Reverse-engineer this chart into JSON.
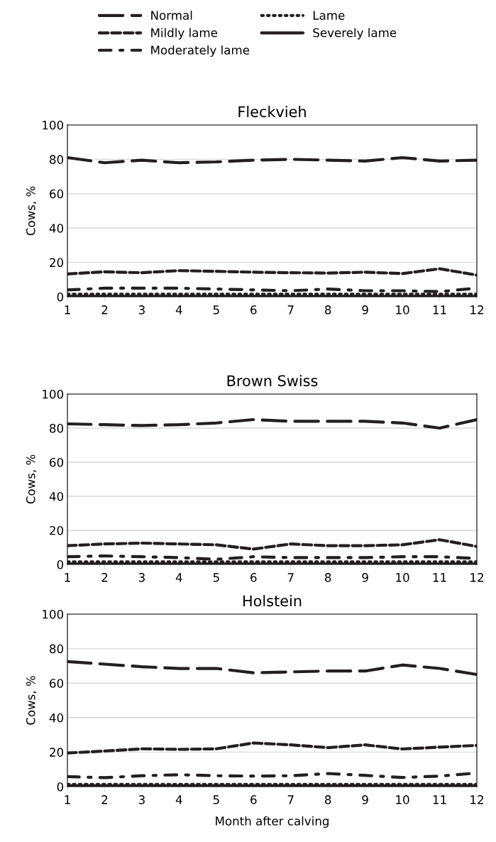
{
  "chart_data": [
    {
      "type": "line",
      "title": "Fleckvieh",
      "ylabel": "Cows, %",
      "x": [
        1,
        2,
        3,
        4,
        5,
        6,
        7,
        8,
        9,
        10,
        11,
        12
      ],
      "xlim": [
        1,
        12
      ],
      "xticks": [
        1,
        2,
        3,
        4,
        5,
        6,
        7,
        8,
        9,
        10,
        11,
        12
      ],
      "ylim": [
        0,
        100
      ],
      "yticks": [
        0,
        20,
        40,
        60,
        80,
        100
      ],
      "grid": "y",
      "legend": "top",
      "series": [
        {
          "name": "Normal",
          "color": "#231f20",
          "line_style": "long dash",
          "values": [
            81,
            78,
            79.5,
            78,
            78.5,
            79.5,
            80,
            79.5,
            79,
            81,
            79,
            79.5
          ]
        },
        {
          "name": "Mildly lame",
          "color": "#231f20",
          "line_style": "dashed",
          "values": [
            13.3,
            14.5,
            14,
            15.2,
            14.8,
            14.3,
            14,
            13.8,
            14.3,
            13.5,
            16.3,
            12.6
          ]
        },
        {
          "name": "Moderately lame",
          "color": "#231f20",
          "line_style": "dash dot",
          "values": [
            4,
            5,
            5,
            5,
            4.5,
            4,
            3.5,
            4.5,
            3.5,
            3.5,
            3,
            5
          ]
        },
        {
          "name": "Lame",
          "color": "#231f20",
          "line_style": "dotted",
          "values": [
            1.5,
            1.5,
            1.5,
            1.5,
            1.5,
            1.5,
            1.5,
            1.5,
            1.5,
            1.5,
            1.5,
            1.5
          ]
        },
        {
          "name": "Severely lame",
          "color": "#231f20",
          "line_style": "solid",
          "values": [
            0.3,
            0.3,
            0.3,
            0.3,
            0.3,
            0.3,
            0.3,
            0.3,
            0.3,
            0.3,
            0.3,
            0.3
          ]
        }
      ]
    },
    {
      "type": "line",
      "title": "Brown Swiss",
      "ylabel": "Cows, %",
      "x": [
        1,
        2,
        3,
        4,
        5,
        6,
        7,
        8,
        9,
        10,
        11,
        12
      ],
      "xlim": [
        1,
        12
      ],
      "xticks": [
        1,
        2,
        3,
        4,
        5,
        6,
        7,
        8,
        9,
        10,
        11,
        12
      ],
      "ylim": [
        0,
        100
      ],
      "yticks": [
        0,
        20,
        40,
        60,
        80,
        100
      ],
      "grid": "y",
      "series": [
        {
          "color": "#231f20",
          "line_style": "long dash",
          "values": [
            82.5,
            82,
            81.5,
            82,
            83,
            85,
            84,
            84,
            84,
            83,
            80,
            85
          ]
        },
        {
          "color": "#231f20",
          "line_style": "dashed",
          "values": [
            11,
            12,
            12.5,
            12,
            11.5,
            9,
            12,
            11,
            11,
            11.5,
            14.5,
            10.5
          ]
        },
        {
          "color": "#231f20",
          "line_style": "dash dot",
          "values": [
            4.5,
            5,
            4.5,
            4,
            3,
            4.5,
            4,
            4,
            4,
            4.5,
            4.5,
            3.5
          ]
        },
        {
          "color": "#231f20",
          "line_style": "dotted",
          "values": [
            1.5,
            1.5,
            1.5,
            1.5,
            1.5,
            1.5,
            1.5,
            1.5,
            1.5,
            1.5,
            1.5,
            1.5
          ]
        },
        {
          "color": "#231f20",
          "line_style": "solid",
          "values": [
            0.3,
            0.3,
            0.3,
            0.3,
            0.3,
            0.3,
            0.3,
            0.3,
            0.3,
            0.3,
            0.3,
            0.3
          ]
        }
      ]
    },
    {
      "type": "line",
      "title": "Holstein",
      "ylabel": "Cows, %",
      "xlabel": "Month after calving",
      "x": [
        1,
        2,
        3,
        4,
        5,
        6,
        7,
        8,
        9,
        10,
        11,
        12
      ],
      "xlim": [
        1,
        12
      ],
      "xticks": [
        1,
        2,
        3,
        4,
        5,
        6,
        7,
        8,
        9,
        10,
        11,
        12
      ],
      "ylim": [
        0,
        100
      ],
      "yticks": [
        0,
        20,
        40,
        60,
        80,
        100
      ],
      "grid": "y",
      "series": [
        {
          "color": "#231f20",
          "line_style": "long dash",
          "values": [
            72.5,
            71,
            69.5,
            68.5,
            68.5,
            66,
            66.5,
            67,
            67,
            70.5,
            68.5,
            65
          ]
        },
        {
          "color": "#231f20",
          "line_style": "dashed",
          "values": [
            19.5,
            20.6,
            21.9,
            21.6,
            21.9,
            25.3,
            24.2,
            22.6,
            24.2,
            21.8,
            22.9,
            23.9
          ]
        },
        {
          "color": "#231f20",
          "line_style": "dash dot",
          "values": [
            5.8,
            5.2,
            6.3,
            6.9,
            6.3,
            6.1,
            6.3,
            7.6,
            6.5,
            5.3,
            6.1,
            7.9
          ]
        },
        {
          "color": "#231f20",
          "line_style": "dotted",
          "values": [
            1.3,
            1.3,
            1.3,
            1.3,
            1.3,
            1.3,
            1.3,
            1.3,
            1.3,
            1.3,
            1.3,
            1.3
          ]
        },
        {
          "color": "#231f20",
          "line_style": "solid",
          "values": [
            0.5,
            0.5,
            0.5,
            0.5,
            0.5,
            0.5,
            0.5,
            0.5,
            0.5,
            0.5,
            0.5,
            0.5
          ]
        }
      ]
    }
  ]
}
